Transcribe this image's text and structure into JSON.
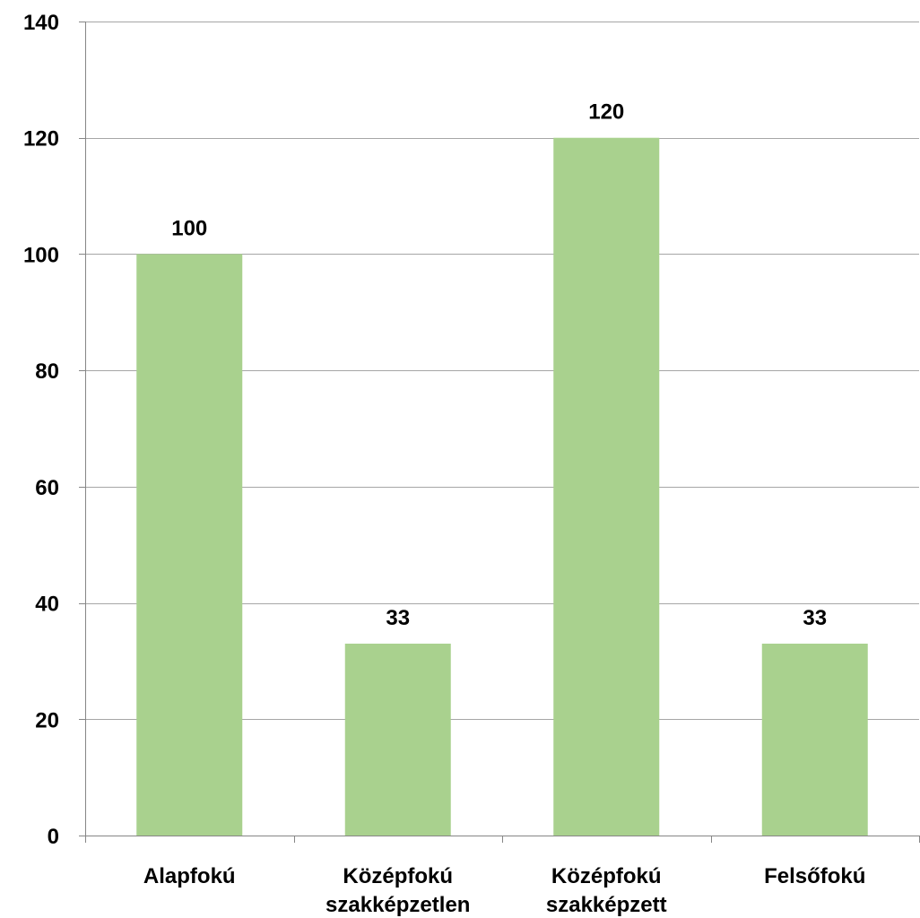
{
  "chart_data": {
    "type": "bar",
    "categories": [
      [
        "Alapfokú"
      ],
      [
        "Középfokú",
        "szakképzetlen"
      ],
      [
        "Középfokú",
        "szakképzett"
      ],
      [
        "Felsőfokú"
      ]
    ],
    "values": [
      100,
      33,
      120,
      33
    ],
    "data_labels": [
      "100",
      "33",
      "120",
      "33"
    ],
    "y_ticks": [
      0,
      20,
      40,
      60,
      80,
      100,
      120,
      140
    ],
    "ylim": [
      0,
      140
    ],
    "grid": true,
    "title": "",
    "xlabel": "",
    "ylabel": "",
    "colors": {
      "bar": "#a9d18e",
      "grid": "#a6a6a6",
      "axis": "#868686",
      "text": "#000000"
    }
  }
}
